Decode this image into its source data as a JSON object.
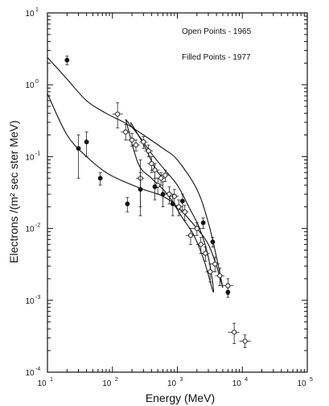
{
  "chart_data": {
    "type": "scatter",
    "title": "",
    "xlabel": "Energy  (MeV)",
    "ylabel": "Electrons /(m² sec ster MeV)",
    "xscale": "log",
    "yscale": "log",
    "xlim": [
      10,
      100000
    ],
    "ylim": [
      0.0001,
      10
    ],
    "grid": false,
    "x_ticks": [
      {
        "value": 10,
        "base": "10",
        "exp": "1"
      },
      {
        "value": 100,
        "base": "10",
        "exp": "2"
      },
      {
        "value": 1000,
        "base": "10",
        "exp": "3"
      },
      {
        "value": 10000,
        "base": "10",
        "exp": "4"
      },
      {
        "value": 100000,
        "base": "10",
        "exp": "5"
      }
    ],
    "y_ticks": [
      {
        "value": 10,
        "base": "10",
        "exp": "1"
      },
      {
        "value": 1,
        "base": "10",
        "exp": "0"
      },
      {
        "value": 0.1,
        "base": "10",
        "exp": "-1"
      },
      {
        "value": 0.01,
        "base": "10",
        "exp": "-2"
      },
      {
        "value": 0.001,
        "base": "10",
        "exp": "-3"
      },
      {
        "value": 0.0001,
        "base": "10",
        "exp": "-4"
      }
    ],
    "annotations": [
      "Open Points - 1965",
      "Filled Points  - 1977"
    ],
    "series": [
      {
        "name": "Open Points - 1965",
        "marker": "open",
        "points": [
          {
            "x": 120,
            "y": 0.39,
            "ylo": 0.25,
            "yhi": 0.56,
            "xlo": 100,
            "xhi": 145
          },
          {
            "x": 160,
            "y": 0.22,
            "ylo": 0.17,
            "yhi": 0.28,
            "xlo": 135,
            "xhi": 190
          },
          {
            "x": 200,
            "y": 0.17,
            "ylo": 0.14,
            "yhi": 0.21,
            "xlo": 170,
            "xhi": 235
          },
          {
            "x": 230,
            "y": 0.145,
            "ylo": 0.12,
            "yhi": 0.17,
            "xlo": 200,
            "xhi": 265
          },
          {
            "x": 270,
            "y": 0.05,
            "ylo": 0.02,
            "yhi": 0.09,
            "xlo": 230,
            "xhi": 310
          },
          {
            "x": 300,
            "y": 0.16,
            "ylo": 0.13,
            "yhi": 0.19,
            "xlo": 260,
            "xhi": 350
          },
          {
            "x": 360,
            "y": 0.12,
            "ylo": 0.1,
            "yhi": 0.145,
            "xlo": 310,
            "xhi": 420
          },
          {
            "x": 400,
            "y": 0.08,
            "ylo": 0.06,
            "yhi": 0.1,
            "xlo": 340,
            "xhi": 470
          },
          {
            "x": 450,
            "y": 0.065,
            "ylo": 0.05,
            "yhi": 0.08,
            "xlo": 380,
            "xhi": 530
          },
          {
            "x": 500,
            "y": 0.04,
            "ylo": 0.03,
            "yhi": 0.05,
            "xlo": 420,
            "xhi": 590
          },
          {
            "x": 560,
            "y": 0.05,
            "ylo": 0.04,
            "yhi": 0.06,
            "xlo": 480,
            "xhi": 650
          },
          {
            "x": 650,
            "y": 0.055,
            "ylo": 0.045,
            "yhi": 0.065,
            "xlo": 560,
            "xhi": 760
          },
          {
            "x": 750,
            "y": 0.03,
            "ylo": 0.022,
            "yhi": 0.038,
            "xlo": 640,
            "xhi": 880
          },
          {
            "x": 900,
            "y": 0.028,
            "ylo": 0.021,
            "yhi": 0.035,
            "xlo": 770,
            "xhi": 1050
          },
          {
            "x": 1050,
            "y": 0.02,
            "ylo": 0.015,
            "yhi": 0.025,
            "xlo": 900,
            "xhi": 1230
          },
          {
            "x": 1300,
            "y": 0.017,
            "ylo": 0.013,
            "yhi": 0.021,
            "xlo": 1100,
            "xhi": 1500
          },
          {
            "x": 1600,
            "y": 0.008,
            "ylo": 0.006,
            "yhi": 0.01,
            "xlo": 1350,
            "xhi": 1900
          },
          {
            "x": 2000,
            "y": 0.01,
            "ylo": 0.008,
            "yhi": 0.012,
            "xlo": 1700,
            "xhi": 2350
          },
          {
            "x": 2300,
            "y": 0.006,
            "ylo": 0.0045,
            "yhi": 0.0075,
            "xlo": 1950,
            "xhi": 2700
          },
          {
            "x": 2700,
            "y": 0.0045,
            "ylo": 0.0035,
            "yhi": 0.0055,
            "xlo": 2300,
            "xhi": 3150
          },
          {
            "x": 3200,
            "y": 0.0025,
            "ylo": 0.0018,
            "yhi": 0.0032,
            "xlo": 2700,
            "xhi": 3800
          },
          {
            "x": 3800,
            "y": 0.0032,
            "ylo": 0.0025,
            "yhi": 0.004,
            "xlo": 3200,
            "xhi": 4500
          },
          {
            "x": 4500,
            "y": 0.0022,
            "ylo": 0.0016,
            "yhi": 0.0028,
            "xlo": 3800,
            "xhi": 5300
          },
          {
            "x": 6000,
            "y": 0.0016,
            "ylo": 0.0012,
            "yhi": 0.002,
            "xlo": 5000,
            "xhi": 7200
          },
          {
            "x": 7500,
            "y": 0.00036,
            "ylo": 0.00025,
            "yhi": 0.00048,
            "xlo": 6000,
            "xhi": 9000
          },
          {
            "x": 11000,
            "y": 0.00027,
            "ylo": 0.00022,
            "yhi": 0.00033,
            "xlo": 9000,
            "xhi": 13500
          }
        ]
      },
      {
        "name": "Filled Points  - 1977",
        "marker": "filled",
        "points": [
          {
            "x": 20,
            "y": 2.2,
            "ylo": 1.9,
            "yhi": 2.5
          },
          {
            "x": 30,
            "y": 0.13,
            "ylo": 0.05,
            "yhi": 0.2
          },
          {
            "x": 40,
            "y": 0.16,
            "ylo": 0.1,
            "yhi": 0.22
          },
          {
            "x": 65,
            "y": 0.05,
            "ylo": 0.04,
            "yhi": 0.06
          },
          {
            "x": 170,
            "y": 0.022,
            "ylo": 0.017,
            "yhi": 0.027
          },
          {
            "x": 270,
            "y": 0.035,
            "ylo": 0.015,
            "yhi": 0.06
          },
          {
            "x": 450,
            "y": 0.038,
            "ylo": 0.025,
            "yhi": 0.05
          },
          {
            "x": 600,
            "y": 0.03,
            "ylo": 0.02,
            "yhi": 0.045
          },
          {
            "x": 850,
            "y": 0.022,
            "ylo": 0.015,
            "yhi": 0.03
          },
          {
            "x": 1200,
            "y": 0.024,
            "ylo": 0.018,
            "yhi": 0.03
          },
          {
            "x": 2500,
            "y": 0.012,
            "ylo": 0.01,
            "yhi": 0.014
          },
          {
            "x": 3500,
            "y": 0.0065,
            "ylo": 0.0055,
            "yhi": 0.0075
          },
          {
            "x": 6000,
            "y": 0.0013,
            "ylo": 0.0011,
            "yhi": 0.0015
          }
        ]
      }
    ],
    "curves": [
      {
        "name": "upper",
        "points": [
          [
            10,
            2.4
          ],
          [
            20,
            1.2
          ],
          [
            40,
            0.6
          ],
          [
            80,
            0.4
          ],
          [
            150,
            0.3
          ],
          [
            300,
            0.2
          ],
          [
            600,
            0.13
          ],
          [
            1000,
            0.09
          ],
          [
            2000,
            0.035
          ],
          [
            3000,
            0.012
          ],
          [
            4000,
            0.004
          ],
          [
            5000,
            0.0015
          ]
        ]
      },
      {
        "name": "lower",
        "points": [
          [
            10,
            0.75
          ],
          [
            20,
            0.2
          ],
          [
            40,
            0.1
          ],
          [
            80,
            0.06
          ],
          [
            150,
            0.045
          ],
          [
            300,
            0.035
          ],
          [
            600,
            0.028
          ],
          [
            1000,
            0.02
          ],
          [
            2000,
            0.01
          ],
          [
            3000,
            0.006
          ],
          [
            4000,
            0.003
          ],
          [
            5000,
            0.0015
          ]
        ]
      },
      {
        "name": "inner-loop",
        "points": [
          [
            160,
            0.33
          ],
          [
            250,
            0.2
          ],
          [
            400,
            0.11
          ],
          [
            600,
            0.07
          ],
          [
            1000,
            0.04
          ],
          [
            1500,
            0.02
          ],
          [
            2200,
            0.01
          ],
          [
            3000,
            0.004
          ],
          [
            3600,
            0.0013
          ],
          [
            2600,
            0.0035
          ],
          [
            1800,
            0.008
          ],
          [
            1200,
            0.014
          ],
          [
            700,
            0.03
          ],
          [
            400,
            0.05
          ],
          [
            250,
            0.08
          ],
          [
            160,
            0.33
          ]
        ]
      },
      {
        "name": "inner-crossing",
        "points": [
          [
            190,
            0.3
          ],
          [
            300,
            0.15
          ],
          [
            450,
            0.07
          ],
          [
            600,
            0.05
          ]
        ]
      }
    ]
  }
}
